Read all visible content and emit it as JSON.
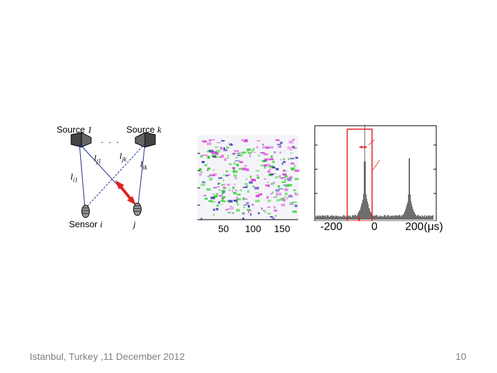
{
  "diagram": {
    "source_1_text": "Source",
    "source_1_index": "1",
    "source_k_text": "Source",
    "source_k_index": "k",
    "dots": ". . .",
    "l_j1": "l",
    "l_j1_sub": "j1",
    "l_jk": "l",
    "l_jk_sub": "jk",
    "l_i1": "l",
    "l_i1_sub": "i1",
    "l_ik": "l",
    "l_ik_sub": "ik",
    "sensor_text": "Sensor",
    "sensor_i": "i",
    "sensor_j": "j",
    "colors": {
      "arrow": "#e02020",
      "line": "#1a2a8a",
      "dash": "#333333"
    }
  },
  "spectrogram": {
    "x_ticks": [
      "50",
      "100",
      "150"
    ],
    "colors": {
      "green": "#22cc22",
      "magenta": "#d63ad6",
      "blue": "#2a2aa8"
    }
  },
  "histogram": {
    "x_ticks": [
      "-200",
      "0",
      "200"
    ],
    "unit": "(μs)",
    "peaks_data_us": [
      -30,
      170
    ],
    "colors": {
      "bars": "#6e6e6e",
      "highlight": "#e02020"
    }
  },
  "footer": {
    "location_date": "Istanbul, Turkey ,11 December 2012",
    "page_number": "10"
  }
}
